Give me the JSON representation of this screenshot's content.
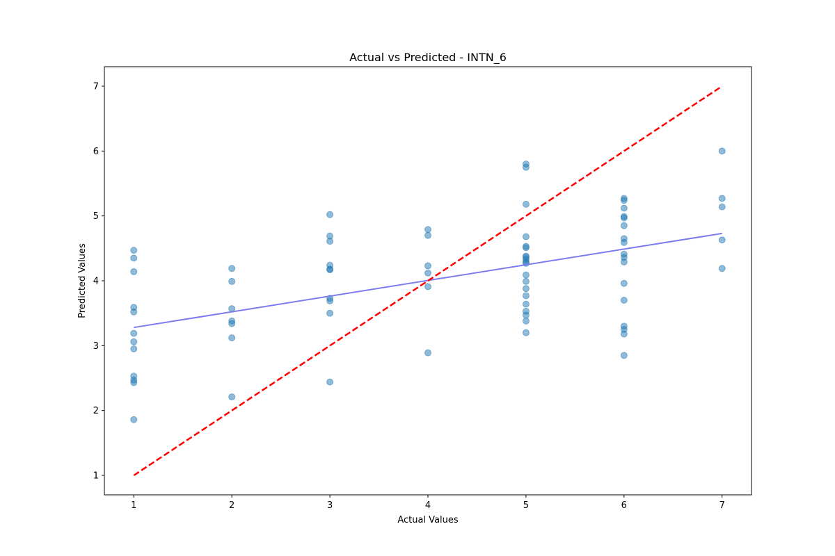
{
  "chart_data": {
    "type": "scatter",
    "title": "Actual vs Predicted - INTN_6",
    "xlabel": "Actual Values",
    "ylabel": "Predicted Values",
    "xlim": [
      0.7,
      7.3
    ],
    "ylim": [
      0.7,
      7.3
    ],
    "x_ticks": [
      1,
      2,
      3,
      4,
      5,
      6,
      7
    ],
    "y_ticks": [
      1,
      2,
      3,
      4,
      5,
      6,
      7
    ],
    "grid": false,
    "legend": "none",
    "points": [
      {
        "x": 1,
        "y": 4.47
      },
      {
        "x": 1,
        "y": 4.35
      },
      {
        "x": 1,
        "y": 4.14
      },
      {
        "x": 1,
        "y": 3.59
      },
      {
        "x": 1,
        "y": 3.52
      },
      {
        "x": 1,
        "y": 3.19
      },
      {
        "x": 1,
        "y": 3.06
      },
      {
        "x": 1,
        "y": 2.95
      },
      {
        "x": 1,
        "y": 2.53
      },
      {
        "x": 1,
        "y": 2.47
      },
      {
        "x": 1,
        "y": 2.43
      },
      {
        "x": 1,
        "y": 1.86
      },
      {
        "x": 2,
        "y": 4.19
      },
      {
        "x": 2,
        "y": 3.99
      },
      {
        "x": 2,
        "y": 3.57
      },
      {
        "x": 2,
        "y": 3.38
      },
      {
        "x": 2,
        "y": 3.34
      },
      {
        "x": 2,
        "y": 3.12
      },
      {
        "x": 2,
        "y": 2.21
      },
      {
        "x": 3,
        "y": 5.02
      },
      {
        "x": 3,
        "y": 4.69
      },
      {
        "x": 3,
        "y": 4.61
      },
      {
        "x": 3,
        "y": 4.24
      },
      {
        "x": 3,
        "y": 4.18
      },
      {
        "x": 3,
        "y": 4.17
      },
      {
        "x": 3,
        "y": 3.73
      },
      {
        "x": 3,
        "y": 3.69
      },
      {
        "x": 3,
        "y": 3.5
      },
      {
        "x": 3,
        "y": 2.44
      },
      {
        "x": 4,
        "y": 4.79
      },
      {
        "x": 4,
        "y": 4.7
      },
      {
        "x": 4,
        "y": 4.23
      },
      {
        "x": 4,
        "y": 4.12
      },
      {
        "x": 4,
        "y": 3.91
      },
      {
        "x": 4,
        "y": 2.89
      },
      {
        "x": 5,
        "y": 5.8
      },
      {
        "x": 5,
        "y": 5.75
      },
      {
        "x": 5,
        "y": 5.18
      },
      {
        "x": 5,
        "y": 4.68
      },
      {
        "x": 5,
        "y": 4.53
      },
      {
        "x": 5,
        "y": 4.51
      },
      {
        "x": 5,
        "y": 4.38
      },
      {
        "x": 5,
        "y": 4.36
      },
      {
        "x": 5,
        "y": 4.33
      },
      {
        "x": 5,
        "y": 4.29
      },
      {
        "x": 5,
        "y": 4.27
      },
      {
        "x": 5,
        "y": 4.09
      },
      {
        "x": 5,
        "y": 3.99
      },
      {
        "x": 5,
        "y": 3.88
      },
      {
        "x": 5,
        "y": 3.77
      },
      {
        "x": 5,
        "y": 3.64
      },
      {
        "x": 5,
        "y": 3.53
      },
      {
        "x": 5,
        "y": 3.47
      },
      {
        "x": 5,
        "y": 3.38
      },
      {
        "x": 5,
        "y": 3.2
      },
      {
        "x": 6,
        "y": 5.27
      },
      {
        "x": 6,
        "y": 5.24
      },
      {
        "x": 6,
        "y": 5.12
      },
      {
        "x": 6,
        "y": 4.99
      },
      {
        "x": 6,
        "y": 4.97
      },
      {
        "x": 6,
        "y": 4.85
      },
      {
        "x": 6,
        "y": 4.65
      },
      {
        "x": 6,
        "y": 4.59
      },
      {
        "x": 6,
        "y": 4.41
      },
      {
        "x": 6,
        "y": 4.36
      },
      {
        "x": 6,
        "y": 4.29
      },
      {
        "x": 6,
        "y": 3.96
      },
      {
        "x": 6,
        "y": 3.7
      },
      {
        "x": 6,
        "y": 3.3
      },
      {
        "x": 6,
        "y": 3.25
      },
      {
        "x": 6,
        "y": 3.18
      },
      {
        "x": 6,
        "y": 2.85
      },
      {
        "x": 7,
        "y": 6.0
      },
      {
        "x": 7,
        "y": 5.27
      },
      {
        "x": 7,
        "y": 5.14
      },
      {
        "x": 7,
        "y": 4.63
      },
      {
        "x": 7,
        "y": 4.19
      }
    ],
    "reference_line": {
      "x": [
        1,
        7
      ],
      "y": [
        1,
        7
      ],
      "style": "dashed",
      "color": "#ff0000"
    },
    "fit_line": {
      "x": [
        1,
        7
      ],
      "y": [
        3.28,
        4.73
      ],
      "color": "#7b7bf0"
    },
    "point_color": "#1f77b4"
  }
}
